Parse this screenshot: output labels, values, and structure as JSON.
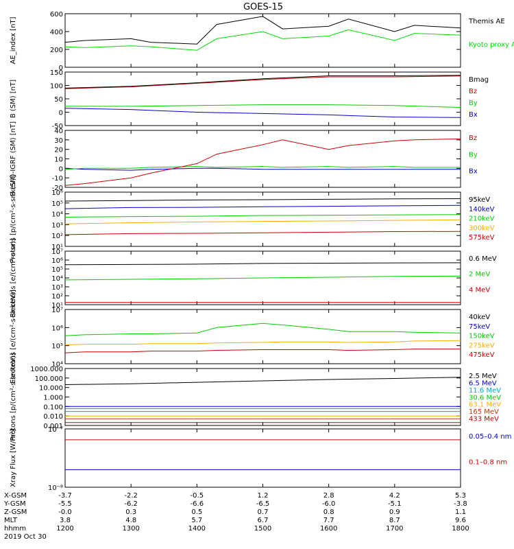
{
  "title": "GOES-15",
  "x_axis": {
    "tick_values": [
      1200,
      1300,
      1400,
      1500,
      1600,
      1700,
      1800
    ],
    "footer_labels": [
      "X-GSM",
      "Y-GSM",
      "Z-GSM",
      "MLT",
      "hhmm",
      "2019 Oct 30"
    ],
    "footer_rows": [
      [
        "-3.7",
        "-2.2",
        "-0.5",
        "1.2",
        "2.8",
        "4.2",
        "5.3"
      ],
      [
        "-5.5",
        "-6.2",
        "-6.6",
        "-6.5",
        "-6.0",
        "-5.1",
        "-3.8"
      ],
      [
        "-0.0",
        "0.3",
        "0.5",
        "0.7",
        "0.8",
        "0.9",
        "1.1"
      ],
      [
        "3.8",
        "4.8",
        "5.7",
        "6.7",
        "7.7",
        "8.7",
        "9.6"
      ],
      [
        "1200",
        "1300",
        "1400",
        "1500",
        "1600",
        "1700",
        "1800"
      ]
    ]
  },
  "chart_data": [
    {
      "type": "line",
      "ylabel": "AE_index [nT]",
      "ylim": [
        0,
        600
      ],
      "yticks": [
        "0",
        "200",
        "400",
        "600"
      ],
      "x": [
        1200,
        1230,
        1300,
        1330,
        1400,
        1430,
        1500,
        1530,
        1600,
        1630,
        1700,
        1730,
        1800
      ],
      "series": [
        {
          "name": "Kyoto proxy AE",
          "color": "#00dd00",
          "values": [
            230,
            220,
            240,
            230,
            190,
            320,
            400,
            320,
            350,
            420,
            300,
            380,
            360
          ]
        },
        {
          "name": "Themis AE",
          "color": "#000000",
          "values": [
            280,
            300,
            320,
            280,
            260,
            480,
            570,
            430,
            460,
            540,
            400,
            470,
            440
          ]
        }
      ]
    },
    {
      "type": "line",
      "ylabel": "B (SM) [nT]",
      "ylim": [
        -50,
        150
      ],
      "yticks": [
        "-50",
        "0",
        "50",
        "100",
        "150"
      ],
      "x": [
        1200,
        1300,
        1400,
        1500,
        1600,
        1700,
        1800
      ],
      "series": [
        {
          "name": "Bx",
          "color": "#0000cc",
          "values": [
            15,
            10,
            0,
            -5,
            -10,
            -18,
            -20
          ]
        },
        {
          "name": "By",
          "color": "#00cc00",
          "values": [
            22,
            22,
            25,
            28,
            28,
            25,
            18
          ]
        },
        {
          "name": "Bz",
          "color": "#cc0000",
          "values": [
            88,
            95,
            108,
            122,
            132,
            132,
            135
          ]
        },
        {
          "name": "Bmag",
          "color": "#000000",
          "values": [
            90,
            97,
            110,
            125,
            136,
            136,
            138
          ]
        }
      ]
    },
    {
      "type": "line",
      "ylabel": "B (SM)-IGRF (SM) [nT]",
      "ylim": [
        -20,
        40
      ],
      "yticks": [
        "-20",
        "-10",
        "0",
        "10",
        "20",
        "30",
        "40"
      ],
      "x": [
        1200,
        1230,
        1300,
        1330,
        1400,
        1430,
        1500,
        1530,
        1600,
        1630,
        1700,
        1730,
        1800
      ],
      "series": [
        {
          "name": "Bx",
          "color": "#0000cc",
          "values": [
            0,
            -1,
            -2,
            -1,
            0,
            0,
            -1,
            -1,
            -1,
            -1,
            -1,
            -1,
            -1
          ]
        },
        {
          "name": "By",
          "color": "#00cc00",
          "values": [
            -1,
            0,
            0,
            1,
            2,
            1,
            2,
            1,
            2,
            1,
            2,
            1,
            1
          ]
        },
        {
          "name": "Bz",
          "color": "#cc0000",
          "values": [
            -18,
            -16,
            -10,
            -5,
            5,
            15,
            25,
            30,
            20,
            24,
            29,
            30,
            31
          ]
        }
      ]
    },
    {
      "type": "line",
      "ylabel": "Protons [p/(cm²-s-sr-keV)]",
      "scale": "log",
      "ylim": [
        10,
        1000000
      ],
      "yticks": [
        "10¹",
        "10²",
        "10³",
        "10⁴",
        "10⁵",
        "10⁶"
      ],
      "x": [
        1200,
        1300,
        1400,
        1500,
        1600,
        1700,
        1800
      ],
      "series": [
        {
          "name": "575keV",
          "color": "#cc0000",
          "values": [
            120,
            150,
            160,
            180,
            200,
            230,
            240
          ]
        },
        {
          "name": "300keV",
          "color": "#ffaa00",
          "values": [
            1200,
            1500,
            1800,
            2000,
            2200,
            2500,
            2800
          ]
        },
        {
          "name": "210keV",
          "color": "#00cc00",
          "values": [
            5000,
            5600,
            6000,
            7000,
            7500,
            8000,
            8500
          ]
        },
        {
          "name": "140keV",
          "color": "#0000cc",
          "values": [
            30000,
            38000,
            40000,
            45000,
            50000,
            55000,
            60000
          ]
        },
        {
          "name": "95keV",
          "color": "#000000",
          "values": [
            150000,
            170000,
            190000,
            200000,
            220000,
            240000,
            250000
          ]
        }
      ]
    },
    {
      "type": "line",
      "ylabel": "Electrons [e/(cm²-s-sr)]",
      "scale": "log",
      "ylim": [
        10,
        10000000
      ],
      "yticks": [
        "10¹",
        "10²",
        "10³",
        "10⁴",
        "10⁵",
        "10⁶",
        "10⁷"
      ],
      "x": [
        1200,
        1300,
        1400,
        1500,
        1600,
        1700,
        1800
      ],
      "series": [
        {
          "name": "4 MeV",
          "color": "#cc0000",
          "values": [
            18,
            18,
            18,
            18,
            18,
            18,
            18
          ]
        },
        {
          "name": "2 MeV",
          "color": "#00cc00",
          "values": [
            6000,
            7000,
            8000,
            10000,
            12000,
            15000,
            16000
          ]
        },
        {
          "name": "0.6 MeV",
          "color": "#000000",
          "values": [
            300000,
            320000,
            350000,
            420000,
            450000,
            480000,
            500000
          ]
        }
      ]
    },
    {
      "type": "line",
      "ylabel": "Electrons [e/(cm²-s-sr-keV)]",
      "scale": "log",
      "ylim": [
        10000,
        10000000
      ],
      "yticks": [
        "10⁴",
        "10⁵",
        "10⁶",
        "10⁷"
      ],
      "x": [
        1200,
        1230,
        1300,
        1330,
        1400,
        1430,
        1500,
        1530,
        1600,
        1630,
        1700,
        1730,
        1800
      ],
      "series": [
        {
          "name": "475keV",
          "color": "#cc0000",
          "values": [
            40000,
            45000,
            45000,
            50000,
            50000,
            55000,
            60000,
            60000,
            60000,
            55000,
            60000,
            65000,
            65000
          ]
        },
        {
          "name": "275keV",
          "color": "#ffaa00",
          "values": [
            110000,
            120000,
            120000,
            130000,
            130000,
            140000,
            150000,
            160000,
            160000,
            150000,
            160000,
            180000,
            190000
          ]
        },
        {
          "name": "150keV",
          "color": "#00cc00",
          "values": [
            350000,
            400000,
            450000,
            450000,
            500000,
            1000000,
            1700000,
            1400000,
            800000,
            600000,
            600000,
            550000,
            500000
          ]
        },
        {
          "name": "75keV",
          "color": "#0000cc",
          "values": [
            9000,
            10000,
            10000,
            10000,
            10000,
            10000,
            10000,
            10000,
            10000,
            10000,
            10000,
            10000,
            10000
          ]
        },
        {
          "name": "40keV",
          "color": "#000000",
          "values": [
            9000,
            10000,
            10000,
            10000,
            10000,
            10000,
            10000,
            10000,
            10000,
            10000,
            10000,
            10000,
            10000
          ]
        }
      ]
    },
    {
      "type": "line",
      "ylabel": "Protons [p/(cm²-s-sr-keV)]",
      "scale": "log",
      "ylim": [
        0.001,
        1000
      ],
      "yticks": [
        "0.001",
        "0.010",
        "0.100",
        "1.000",
        "10.000",
        "100.000",
        "1000.000"
      ],
      "x": [
        1200,
        1300,
        1400,
        1500,
        1600,
        1700,
        1800
      ],
      "series": [
        {
          "name": "433 MeV",
          "color": "#cc0000",
          "values": [
            0.002,
            0.002,
            0.002,
            0.002,
            0.002,
            0.002,
            0.002
          ]
        },
        {
          "name": "165 MeV",
          "color": "#cc3300",
          "values": [
            0.005,
            0.005,
            0.005,
            0.005,
            0.005,
            0.005,
            0.005
          ]
        },
        {
          "name": "63.1 MeV",
          "color": "#ffaa00",
          "values": [
            0.01,
            0.01,
            0.01,
            0.01,
            0.01,
            0.01,
            0.01
          ]
        },
        {
          "name": "30.6 MeV",
          "color": "#00cc00",
          "values": [
            0.03,
            0.03,
            0.03,
            0.03,
            0.03,
            0.03,
            0.03
          ]
        },
        {
          "name": "11.6 MeV",
          "color": "#00aacc",
          "values": [
            0.06,
            0.06,
            0.06,
            0.06,
            0.06,
            0.06,
            0.06
          ]
        },
        {
          "name": "6.5 MeV",
          "color": "#0000cc",
          "values": [
            0.1,
            0.1,
            0.1,
            0.1,
            0.1,
            0.1,
            0.1
          ]
        },
        {
          "name": "2.5 MeV",
          "color": "#000000",
          "values": [
            20,
            25,
            35,
            50,
            70,
            90,
            120
          ]
        }
      ]
    },
    {
      "type": "line",
      "ylabel": "Xray Flux [W/m²]",
      "scale": "log",
      "ylim": [
        1e-08,
        1e-07
      ],
      "yticks": [
        "10⁻⁸",
        "10⁻⁷"
      ],
      "x": [
        1200,
        1300,
        1400,
        1500,
        1600,
        1700,
        1800
      ],
      "series": [
        {
          "name": "0.1–0.8 nm",
          "color": "#cc0000",
          "values": [
            6.5e-08,
            6.5e-08,
            6.5e-08,
            6.5e-08,
            6.5e-08,
            6.5e-08,
            6.5e-08
          ]
        },
        {
          "name": "0.05–0.4 nm",
          "color": "#0000cc",
          "values": [
            2e-08,
            2e-08,
            2e-08,
            2e-08,
            2e-08,
            2e-08,
            2e-08
          ]
        }
      ]
    }
  ]
}
